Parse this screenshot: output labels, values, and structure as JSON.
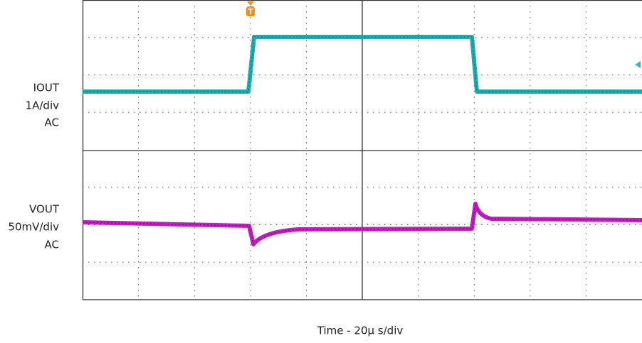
{
  "channels": [
    {
      "name": "IOUT",
      "scale": "1A/div",
      "coupling": "AC"
    },
    {
      "name": "VOUT",
      "scale": "50mV/div",
      "coupling": "AC"
    }
  ],
  "trigger": {
    "label": "T"
  },
  "footer": {
    "time_scale": "Time - 20µ s/div"
  }
}
